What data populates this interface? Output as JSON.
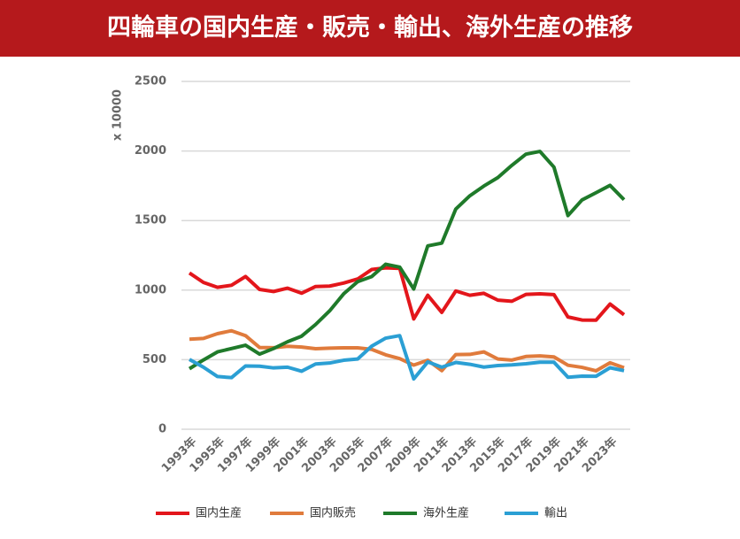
{
  "chart_data": {
    "type": "line",
    "title": "四輪車の国内生産・販売・輸出、海外生産の推移",
    "y_label": "x 10000",
    "categories": [
      "1993年",
      null,
      "1995年",
      null,
      "1997年",
      null,
      "1999年",
      null,
      "2001年",
      null,
      "2003年",
      null,
      "2005年",
      null,
      "2007年",
      null,
      "2009年",
      null,
      "2011年",
      null,
      "2013年",
      null,
      "2015年",
      null,
      "2017年",
      null,
      "2019年",
      null,
      "2021年",
      null,
      "2023年",
      null
    ],
    "series": [
      {
        "name": "国内生産",
        "color": "#e3161b",
        "values": [
          1123,
          1055,
          1020,
          1035,
          1098,
          1005,
          990,
          1014,
          978,
          1026,
          1029,
          1051,
          1080,
          1148,
          1160,
          1156,
          793,
          963,
          840,
          994,
          963,
          977,
          928,
          920,
          969,
          973,
          968,
          807,
          785,
          784,
          900,
          823
        ]
      },
      {
        "name": "国内販売",
        "color": "#e07b3c",
        "values": [
          647,
          653,
          687,
          708,
          673,
          588,
          586,
          596,
          591,
          579,
          583,
          585,
          585,
          574,
          535,
          508,
          461,
          496,
          421,
          537,
          538,
          556,
          505,
          497,
          523,
          527,
          520,
          460,
          445,
          420,
          478,
          442
        ]
      },
      {
        "name": "海外生産",
        "color": "#1f7a2a",
        "values": [
          435,
          498,
          556,
          580,
          604,
          540,
          580,
          629,
          669,
          753,
          851,
          973,
          1061,
          1097,
          1186,
          1165,
          1008,
          1318,
          1338,
          1583,
          1678,
          1748,
          1809,
          1897,
          1977,
          1997,
          1884,
          1536,
          1648,
          1700,
          1753,
          1650
        ]
      },
      {
        "name": "輸出",
        "color": "#2b9fd4",
        "values": [
          502,
          446,
          379,
          371,
          455,
          453,
          441,
          446,
          417,
          469,
          476,
          496,
          505,
          597,
          655,
          673,
          362,
          484,
          446,
          480,
          467,
          447,
          458,
          463,
          471,
          482,
          482,
          374,
          382,
          381,
          442,
          421
        ]
      }
    ],
    "ylim": [
      0,
      2500
    ],
    "yticks": [
      0,
      500,
      1000,
      1500,
      2000,
      2500
    ],
    "grid": true,
    "legend": "bottom"
  }
}
